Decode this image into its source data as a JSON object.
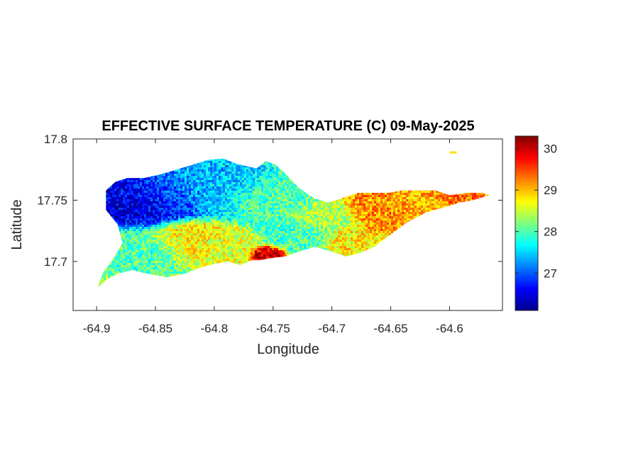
{
  "chart_data": {
    "type": "heatmap",
    "title": "EFFECTIVE SURFACE TEMPERATURE (C) 09-May-2025",
    "xlabel": "Longitude",
    "ylabel": "Latitude",
    "xlim": [
      -64.92,
      -64.555
    ],
    "ylim": [
      17.66,
      17.8
    ],
    "x_ticks": [
      -64.9,
      -64.85,
      -64.8,
      -64.75,
      -64.7,
      -64.65,
      -64.6
    ],
    "x_tick_labels": [
      "-64.9",
      "-64.85",
      "-64.8",
      "-64.75",
      "-64.7",
      "-64.65",
      "-64.6"
    ],
    "y_ticks": [
      17.7,
      17.75,
      17.8
    ],
    "y_tick_labels": [
      "17.7",
      "17.75",
      "17.8"
    ],
    "colormap": "jet",
    "color_range": [
      26.1,
      30.3
    ],
    "colorbar_ticks": [
      27,
      28,
      29,
      30
    ],
    "colorbar_tick_labels": [
      "27",
      "28",
      "29",
      "30"
    ],
    "grid": false,
    "island_outline": [
      [
        -64.899,
        17.679
      ],
      [
        -64.89,
        17.686
      ],
      [
        -64.882,
        17.69
      ],
      [
        -64.87,
        17.693
      ],
      [
        -64.857,
        17.69
      ],
      [
        -64.84,
        17.687
      ],
      [
        -64.825,
        17.69
      ],
      [
        -64.812,
        17.695
      ],
      [
        -64.8,
        17.698
      ],
      [
        -64.788,
        17.7
      ],
      [
        -64.778,
        17.697
      ],
      [
        -64.768,
        17.701
      ],
      [
        -64.762,
        17.701
      ],
      [
        -64.75,
        17.703
      ],
      [
        -64.74,
        17.704
      ],
      [
        -64.728,
        17.708
      ],
      [
        -64.715,
        17.712
      ],
      [
        -64.7,
        17.708
      ],
      [
        -64.688,
        17.704
      ],
      [
        -64.676,
        17.707
      ],
      [
        -64.664,
        17.712
      ],
      [
        -64.65,
        17.722
      ],
      [
        -64.636,
        17.732
      ],
      [
        -64.62,
        17.74
      ],
      [
        -64.605,
        17.744
      ],
      [
        -64.592,
        17.748
      ],
      [
        -64.58,
        17.75
      ],
      [
        -64.57,
        17.753
      ],
      [
        -64.566,
        17.754
      ],
      [
        -64.572,
        17.756
      ],
      [
        -64.585,
        17.756
      ],
      [
        -64.6,
        17.754
      ],
      [
        -64.612,
        17.758
      ],
      [
        -64.624,
        17.758
      ],
      [
        -64.64,
        17.758
      ],
      [
        -64.652,
        17.756
      ],
      [
        -64.666,
        17.756
      ],
      [
        -64.678,
        17.756
      ],
      [
        -64.69,
        17.752
      ],
      [
        -64.703,
        17.748
      ],
      [
        -64.716,
        17.752
      ],
      [
        -64.728,
        17.76
      ],
      [
        -64.74,
        17.772
      ],
      [
        -64.748,
        17.779
      ],
      [
        -64.756,
        17.782
      ],
      [
        -64.764,
        17.776
      ],
      [
        -64.774,
        17.778
      ],
      [
        -64.782,
        17.78
      ],
      [
        -64.792,
        17.784
      ],
      [
        -64.805,
        17.783
      ],
      [
        -64.818,
        17.779
      ],
      [
        -64.832,
        17.775
      ],
      [
        -64.846,
        17.771
      ],
      [
        -64.86,
        17.768
      ],
      [
        -64.874,
        17.768
      ],
      [
        -64.884,
        17.765
      ],
      [
        -64.892,
        17.758
      ],
      [
        -64.892,
        17.742
      ],
      [
        -64.882,
        17.73
      ],
      [
        -64.878,
        17.715
      ],
      [
        -64.886,
        17.702
      ],
      [
        -64.895,
        17.69
      ]
    ],
    "islet": [
      -64.597,
      17.789
    ],
    "temperature_zones": [
      {
        "lon": -64.865,
        "lat": 17.748,
        "radius": 0.028,
        "temp": 26.5
      },
      {
        "lon": -64.84,
        "lat": 17.755,
        "radius": 0.022,
        "temp": 27.0
      },
      {
        "lon": -64.8,
        "lat": 17.76,
        "radius": 0.026,
        "temp": 27.4
      },
      {
        "lon": -64.76,
        "lat": 17.752,
        "radius": 0.022,
        "temp": 28.0
      },
      {
        "lon": -64.86,
        "lat": 17.712,
        "radius": 0.022,
        "temp": 28.0
      },
      {
        "lon": -64.825,
        "lat": 17.718,
        "radius": 0.02,
        "temp": 28.8
      },
      {
        "lon": -64.79,
        "lat": 17.712,
        "radius": 0.016,
        "temp": 28.6
      },
      {
        "lon": -64.755,
        "lat": 17.706,
        "radius": 0.008,
        "temp": 30.0
      },
      {
        "lon": -64.728,
        "lat": 17.722,
        "radius": 0.018,
        "temp": 28.0
      },
      {
        "lon": -64.705,
        "lat": 17.735,
        "radius": 0.016,
        "temp": 28.4
      },
      {
        "lon": -64.688,
        "lat": 17.718,
        "radius": 0.012,
        "temp": 28.8
      },
      {
        "lon": -64.655,
        "lat": 17.742,
        "radius": 0.018,
        "temp": 29.2
      },
      {
        "lon": -64.625,
        "lat": 17.747,
        "radius": 0.016,
        "temp": 29.0
      },
      {
        "lon": -64.595,
        "lat": 17.752,
        "radius": 0.012,
        "temp": 29.3
      }
    ]
  }
}
